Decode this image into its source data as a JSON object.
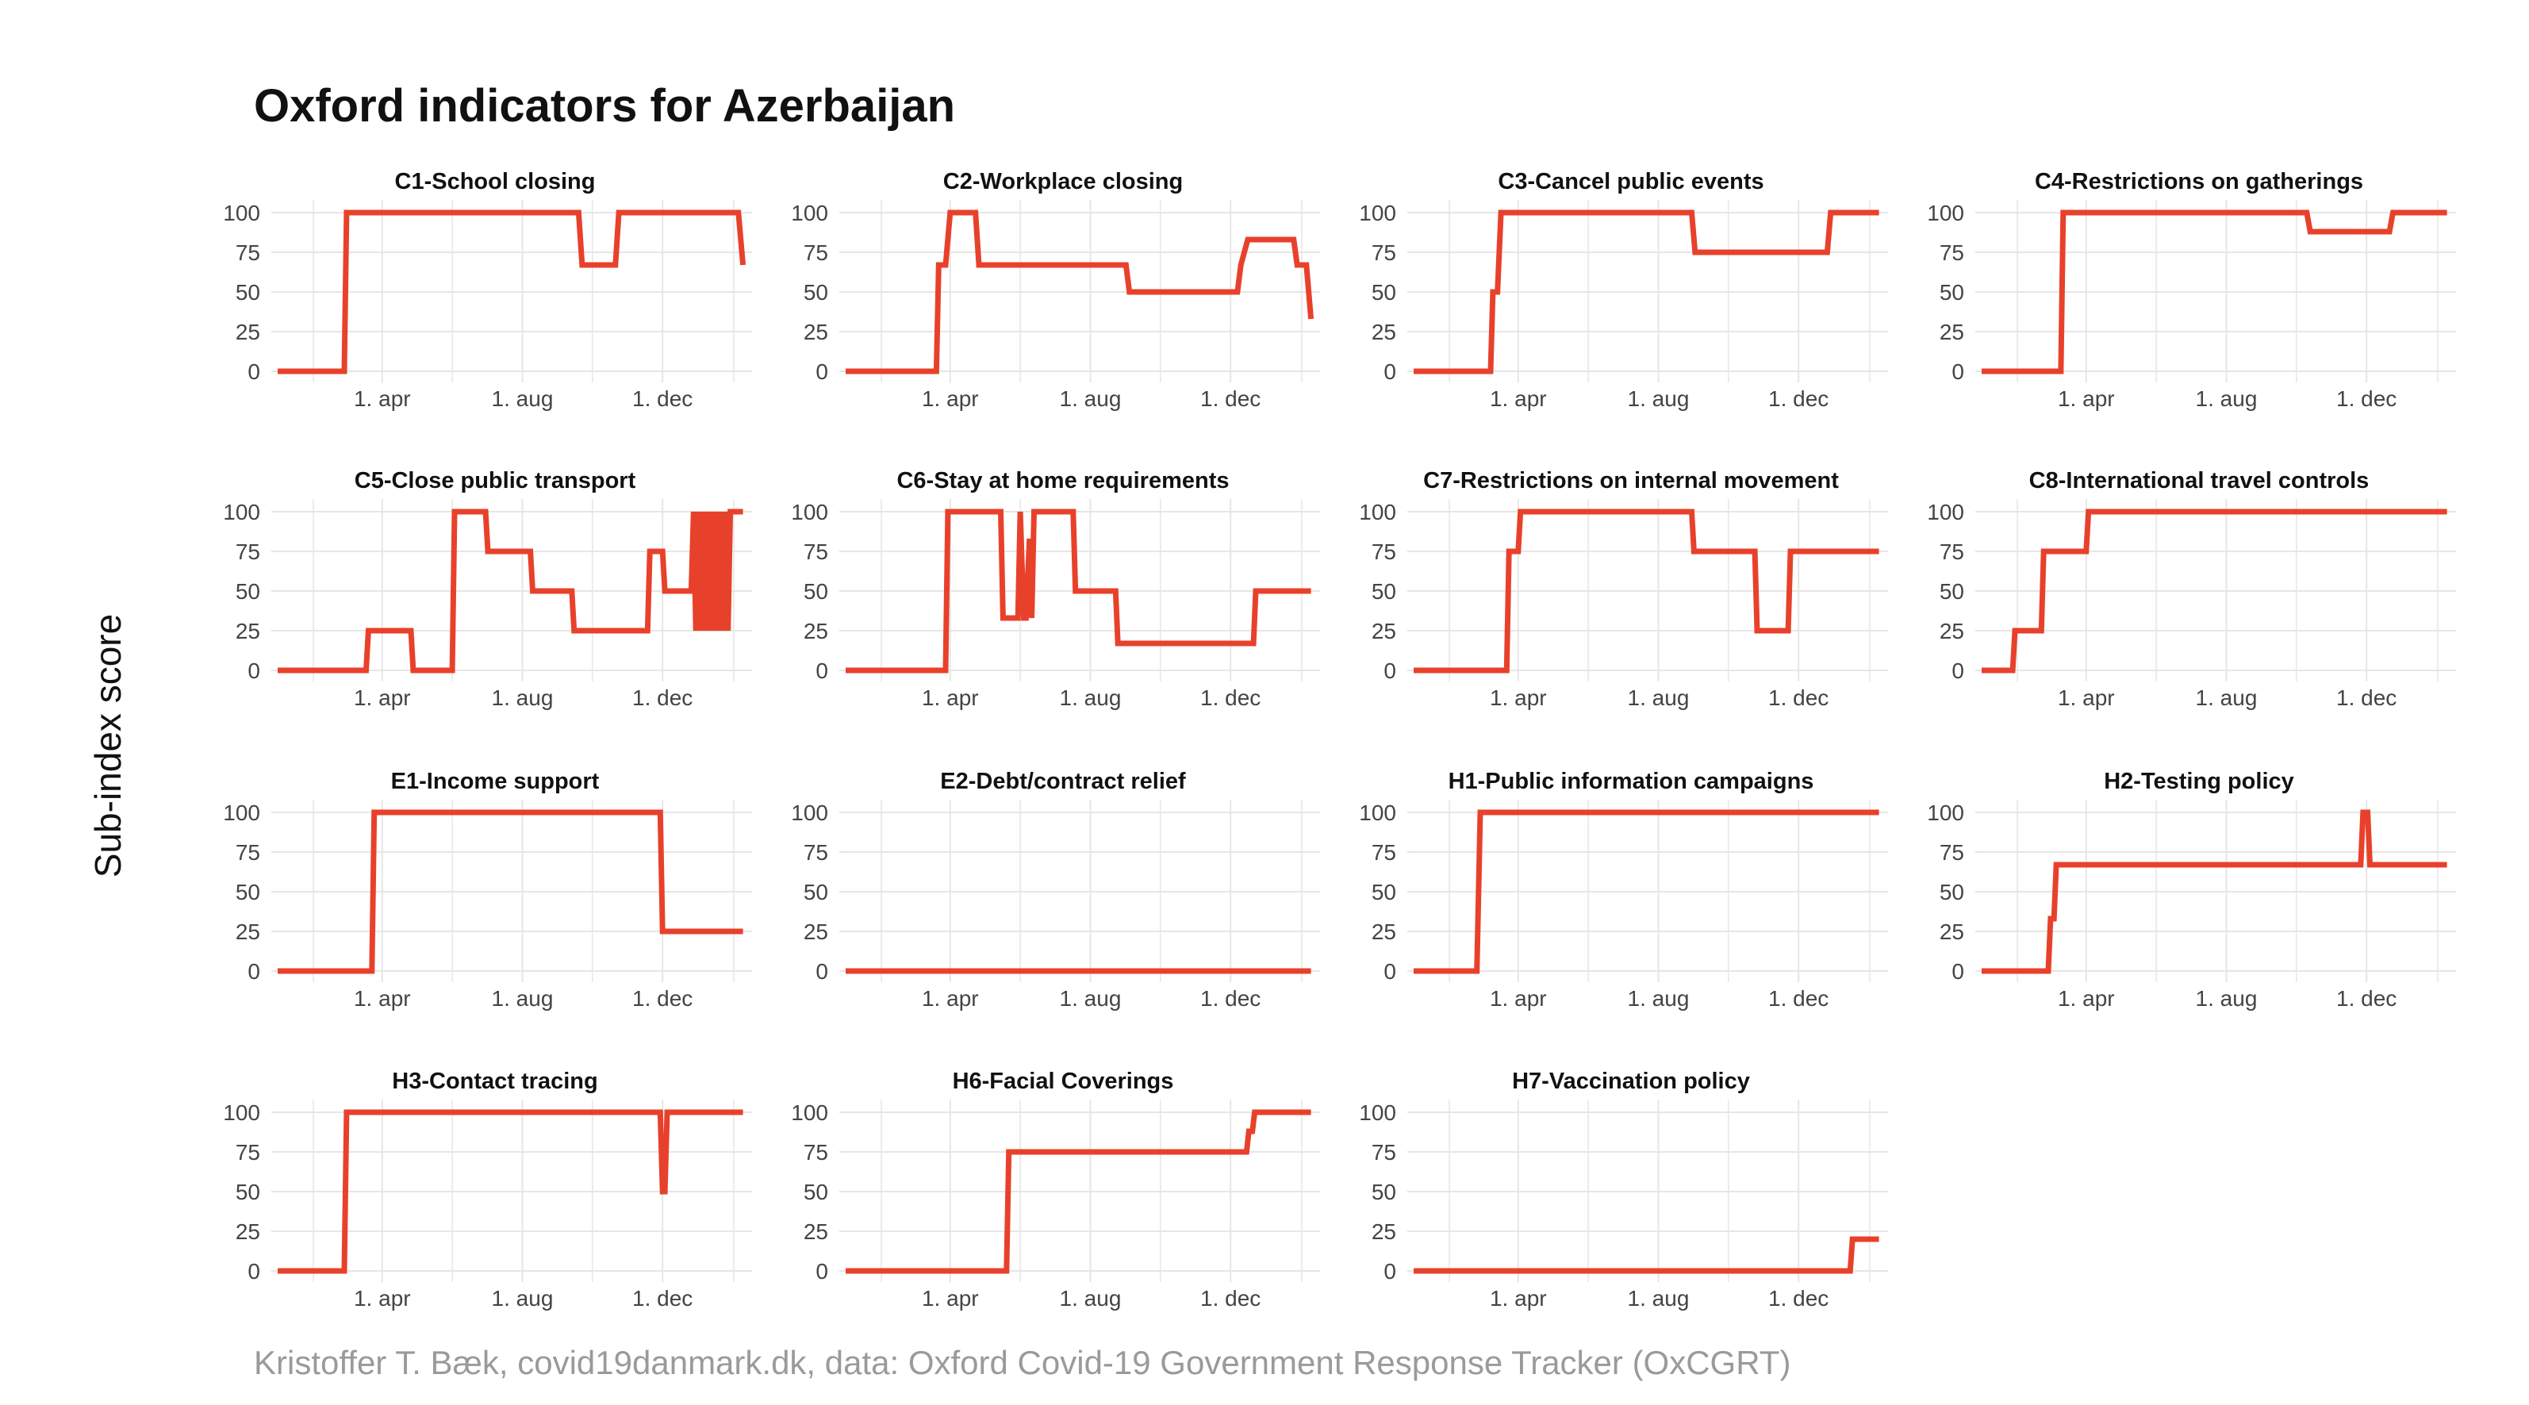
{
  "title": "Oxford indicators for Azerbaijan",
  "ylabel": "Sub-index score",
  "caption": "Kristoffer T. Bæk, covid19danmark.dk, data: Oxford Covid-19 Government Response Tracker (OxCGRT)",
  "colors": {
    "line": "#e8412b",
    "grid": "#e6e6e6",
    "tick_text": "#444444",
    "panel_title": "#111111"
  },
  "chart_data": [
    {
      "type": "line",
      "title": "C1-School closing",
      "xlabel": "",
      "ylabel": "",
      "x_ticks": [
        "1. apr",
        "1. aug",
        "1. dec"
      ],
      "y_ticks": [
        0,
        25,
        50,
        75,
        100
      ],
      "xlim": [
        "2020-01-01",
        "2021-02-10"
      ],
      "ylim": [
        0,
        100
      ],
      "x": [
        "2020-01-01",
        "2020-02-28",
        "2020-03-01",
        "2020-09-19",
        "2020-09-22",
        "2020-10-21",
        "2020-10-24",
        "2021-02-05",
        "2021-02-09"
      ],
      "y": [
        0,
        0,
        100,
        100,
        67,
        67,
        100,
        100,
        67
      ]
    },
    {
      "type": "line",
      "title": "C2-Workplace closing",
      "xlabel": "",
      "ylabel": "",
      "x_ticks": [
        "1. apr",
        "1. aug",
        "1. dec"
      ],
      "y_ticks": [
        0,
        25,
        50,
        75,
        100
      ],
      "xlim": [
        "2020-01-01",
        "2021-02-10"
      ],
      "ylim": [
        0,
        100
      ],
      "x": [
        "2020-01-01",
        "2020-03-20",
        "2020-03-22",
        "2020-03-28",
        "2020-04-01",
        "2020-04-23",
        "2020-04-26",
        "2020-09-01",
        "2020-09-04",
        "2020-12-07",
        "2020-12-10",
        "2020-12-16",
        "2021-01-25",
        "2021-01-28",
        "2021-02-05",
        "2021-02-09"
      ],
      "y": [
        0,
        0,
        67,
        67,
        100,
        100,
        67,
        67,
        50,
        50,
        67,
        83,
        83,
        67,
        67,
        33
      ]
    },
    {
      "type": "line",
      "title": "C3-Cancel public events",
      "xlabel": "",
      "ylabel": "",
      "x_ticks": [
        "1. apr",
        "1. aug",
        "1. dec"
      ],
      "y_ticks": [
        0,
        25,
        50,
        75,
        100
      ],
      "xlim": [
        "2020-01-01",
        "2021-02-10"
      ],
      "ylim": [
        0,
        100
      ],
      "x": [
        "2020-01-01",
        "2020-03-08",
        "2020-03-10",
        "2020-03-14",
        "2020-03-17",
        "2020-08-30",
        "2020-09-02",
        "2020-12-26",
        "2020-12-29",
        "2021-02-09"
      ],
      "y": [
        0,
        0,
        50,
        50,
        100,
        100,
        75,
        75,
        100,
        100
      ]
    },
    {
      "type": "line",
      "title": "C4-Restrictions on gatherings",
      "xlabel": "",
      "ylabel": "",
      "x_ticks": [
        "1. apr",
        "1. aug",
        "1. dec"
      ],
      "y_ticks": [
        0,
        25,
        50,
        75,
        100
      ],
      "xlim": [
        "2020-01-01",
        "2021-02-10"
      ],
      "ylim": [
        0,
        100
      ],
      "x": [
        "2020-01-01",
        "2020-03-10",
        "2020-03-12",
        "2020-10-10",
        "2020-10-13",
        "2020-12-21",
        "2020-12-24",
        "2021-02-09"
      ],
      "y": [
        0,
        0,
        100,
        100,
        88,
        88,
        100,
        100
      ]
    },
    {
      "type": "line",
      "title": "C5-Close public transport",
      "xlabel": "",
      "ylabel": "",
      "x_ticks": [
        "1. apr",
        "1. aug",
        "1. dec"
      ],
      "y_ticks": [
        0,
        25,
        50,
        75,
        100
      ],
      "xlim": [
        "2020-01-01",
        "2021-02-10"
      ],
      "ylim": [
        0,
        100
      ],
      "x": [
        "2020-01-01",
        "2020-03-18",
        "2020-03-20",
        "2020-04-26",
        "2020-04-28",
        "2020-06-01",
        "2020-06-03",
        "2020-06-30",
        "2020-07-02",
        "2020-08-08",
        "2020-08-10",
        "2020-09-13",
        "2020-09-15",
        "2020-11-18",
        "2020-11-20",
        "2020-12-01",
        "2020-12-03",
        "2020-12-26",
        "2020-12-28",
        "2020-12-30",
        "2021-01-01",
        "2021-01-03",
        "2021-01-05",
        "2021-01-07",
        "2021-01-09",
        "2021-01-11",
        "2021-01-13",
        "2021-01-15",
        "2021-01-17",
        "2021-01-19",
        "2021-01-21",
        "2021-01-23",
        "2021-01-25",
        "2021-01-27",
        "2021-01-29",
        "2021-01-31",
        "2021-02-03",
        "2021-02-09"
      ],
      "y": [
        0,
        0,
        25,
        25,
        0,
        0,
        100,
        100,
        75,
        75,
        50,
        50,
        25,
        25,
        75,
        75,
        50,
        50,
        100,
        25,
        100,
        25,
        100,
        25,
        100,
        25,
        100,
        25,
        100,
        25,
        100,
        25,
        100,
        25,
        100,
        100,
        100,
        100
      ]
    },
    {
      "type": "line",
      "title": "C6-Stay at home requirements",
      "xlabel": "",
      "ylabel": "",
      "x_ticks": [
        "1. apr",
        "1. aug",
        "1. dec"
      ],
      "y_ticks": [
        0,
        25,
        50,
        75,
        100
      ],
      "xlim": [
        "2020-01-01",
        "2021-02-10"
      ],
      "ylim": [
        0,
        100
      ],
      "x": [
        "2020-01-01",
        "2020-03-28",
        "2020-03-30",
        "2020-05-15",
        "2020-05-17",
        "2020-05-30",
        "2020-06-01",
        "2020-06-04",
        "2020-06-06",
        "2020-06-09",
        "2020-06-11",
        "2020-06-13",
        "2020-06-15",
        "2020-07-17",
        "2020-07-19",
        "2020-08-23",
        "2020-08-25",
        "2020-12-21",
        "2020-12-23",
        "2021-02-09"
      ],
      "y": [
        0,
        0,
        100,
        100,
        33,
        33,
        100,
        33,
        33,
        83,
        33,
        100,
        100,
        100,
        50,
        50,
        17,
        17,
        50,
        50
      ]
    },
    {
      "type": "line",
      "title": "C7-Restrictions on internal movement",
      "xlabel": "",
      "ylabel": "",
      "x_ticks": [
        "1. apr",
        "1. aug",
        "1. dec"
      ],
      "y_ticks": [
        0,
        25,
        50,
        75,
        100
      ],
      "xlim": [
        "2020-01-01",
        "2021-02-10"
      ],
      "ylim": [
        0,
        100
      ],
      "x": [
        "2020-01-01",
        "2020-03-22",
        "2020-03-24",
        "2020-04-01",
        "2020-04-03",
        "2020-08-30",
        "2020-09-01",
        "2020-10-24",
        "2020-10-26",
        "2020-11-22",
        "2020-11-24",
        "2021-02-09"
      ],
      "y": [
        0,
        0,
        75,
        75,
        100,
        100,
        75,
        75,
        25,
        25,
        75,
        75
      ]
    },
    {
      "type": "line",
      "title": "C8-International travel controls",
      "xlabel": "",
      "ylabel": "",
      "x_ticks": [
        "1. apr",
        "1. aug",
        "1. dec"
      ],
      "y_ticks": [
        0,
        25,
        50,
        75,
        100
      ],
      "xlim": [
        "2020-01-01",
        "2021-02-10"
      ],
      "ylim": [
        0,
        100
      ],
      "x": [
        "2020-01-01",
        "2020-01-28",
        "2020-01-30",
        "2020-02-22",
        "2020-02-24",
        "2020-04-01",
        "2020-04-03",
        "2021-02-09"
      ],
      "y": [
        0,
        0,
        25,
        25,
        75,
        75,
        100,
        100
      ]
    },
    {
      "type": "line",
      "title": "E1-Income support",
      "xlabel": "",
      "ylabel": "",
      "x_ticks": [
        "1. apr",
        "1. aug",
        "1. dec"
      ],
      "y_ticks": [
        0,
        25,
        50,
        75,
        100
      ],
      "xlim": [
        "2020-01-01",
        "2021-02-10"
      ],
      "ylim": [
        0,
        100
      ],
      "x": [
        "2020-01-01",
        "2020-03-23",
        "2020-03-25",
        "2020-11-29",
        "2020-12-01",
        "2021-02-09"
      ],
      "y": [
        0,
        0,
        100,
        100,
        25,
        25
      ]
    },
    {
      "type": "line",
      "title": "E2-Debt/contract relief",
      "xlabel": "",
      "ylabel": "",
      "x_ticks": [
        "1. apr",
        "1. aug",
        "1. dec"
      ],
      "y_ticks": [
        0,
        25,
        50,
        75,
        100
      ],
      "xlim": [
        "2020-01-01",
        "2021-02-10"
      ],
      "ylim": [
        0,
        100
      ],
      "x": [
        "2020-01-01",
        "2021-02-09"
      ],
      "y": [
        0,
        0
      ]
    },
    {
      "type": "line",
      "title": "H1-Public information campaigns",
      "xlabel": "",
      "ylabel": "",
      "x_ticks": [
        "1. apr",
        "1. aug",
        "1. dec"
      ],
      "y_ticks": [
        0,
        25,
        50,
        75,
        100
      ],
      "xlim": [
        "2020-01-01",
        "2021-02-10"
      ],
      "ylim": [
        0,
        100
      ],
      "x": [
        "2020-01-01",
        "2020-02-25",
        "2020-02-28",
        "2021-02-09"
      ],
      "y": [
        0,
        0,
        100,
        100
      ]
    },
    {
      "type": "line",
      "title": "H2-Testing policy",
      "xlabel": "",
      "ylabel": "",
      "x_ticks": [
        "1. apr",
        "1. aug",
        "1. dec"
      ],
      "y_ticks": [
        0,
        25,
        50,
        75,
        100
      ],
      "xlim": [
        "2020-01-01",
        "2021-02-10"
      ],
      "ylim": [
        0,
        100
      ],
      "x": [
        "2020-01-01",
        "2020-02-28",
        "2020-03-01",
        "2020-03-04",
        "2020-03-06",
        "2020-11-26",
        "2020-11-28",
        "2020-12-02",
        "2020-12-04",
        "2021-02-09"
      ],
      "y": [
        0,
        0,
        33,
        33,
        67,
        67,
        100,
        100,
        67,
        67
      ]
    },
    {
      "type": "line",
      "title": "H3-Contact tracing",
      "xlabel": "",
      "ylabel": "",
      "x_ticks": [
        "1. apr",
        "1. aug",
        "1. dec"
      ],
      "y_ticks": [
        0,
        25,
        50,
        75,
        100
      ],
      "xlim": [
        "2020-01-01",
        "2021-02-10"
      ],
      "ylim": [
        0,
        100
      ],
      "x": [
        "2020-01-01",
        "2020-02-28",
        "2020-03-01",
        "2020-11-29",
        "2020-12-01",
        "2020-12-03",
        "2020-12-05",
        "2021-02-09"
      ],
      "y": [
        0,
        0,
        100,
        100,
        50,
        50,
        100,
        100
      ]
    },
    {
      "type": "line",
      "title": "H6-Facial Coverings",
      "xlabel": "",
      "ylabel": "",
      "x_ticks": [
        "1. apr",
        "1. aug",
        "1. dec"
      ],
      "y_ticks": [
        0,
        25,
        50,
        75,
        100
      ],
      "xlim": [
        "2020-01-01",
        "2021-02-10"
      ],
      "ylim": [
        0,
        100
      ],
      "x": [
        "2020-01-01",
        "2020-05-20",
        "2020-05-22",
        "2020-12-15",
        "2020-12-17",
        "2020-12-20",
        "2020-12-22",
        "2021-02-09"
      ],
      "y": [
        0,
        0,
        75,
        75,
        88,
        88,
        100,
        100
      ]
    },
    {
      "type": "line",
      "title": "H7-Vaccination policy",
      "xlabel": "",
      "ylabel": "",
      "x_ticks": [
        "1. apr",
        "1. aug",
        "1. dec"
      ],
      "y_ticks": [
        0,
        25,
        50,
        75,
        100
      ],
      "xlim": [
        "2020-01-01",
        "2021-02-10"
      ],
      "ylim": [
        0,
        100
      ],
      "x": [
        "2020-01-01",
        "2021-01-15",
        "2021-01-17",
        "2021-02-09"
      ],
      "y": [
        0,
        0,
        20,
        20
      ]
    }
  ]
}
